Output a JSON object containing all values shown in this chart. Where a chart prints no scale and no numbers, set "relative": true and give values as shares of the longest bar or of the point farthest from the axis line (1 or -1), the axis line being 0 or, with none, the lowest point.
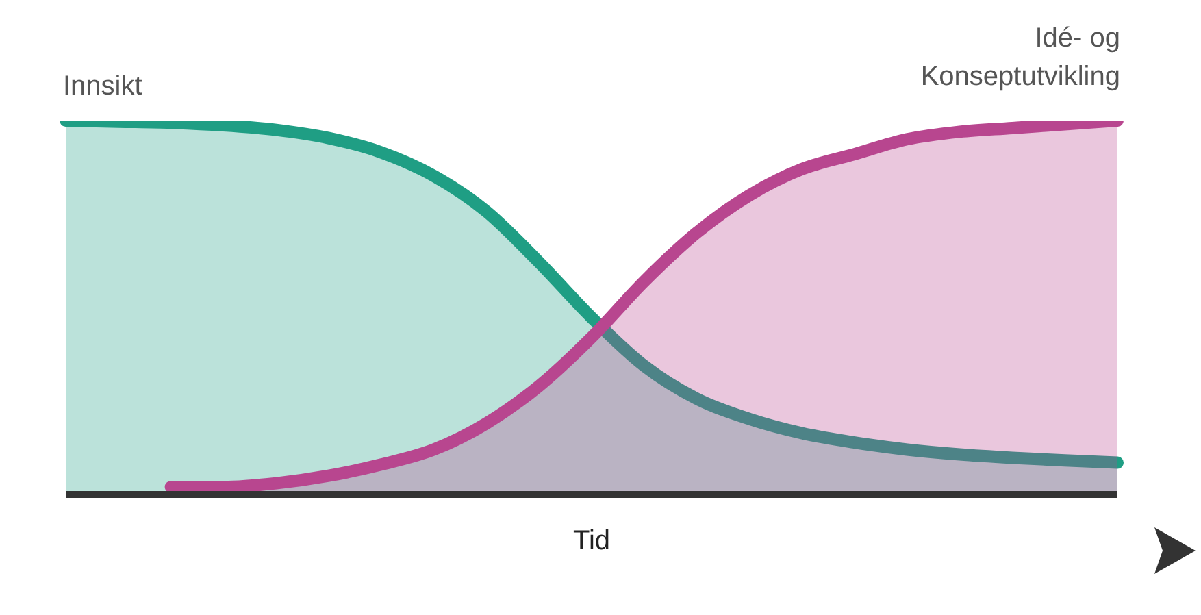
{
  "chart_data": {
    "type": "area",
    "relative": true,
    "xlabel": "Tid",
    "categories": [
      null,
      null,
      null,
      null,
      null,
      null,
      null,
      null,
      null,
      null,
      null,
      null,
      null,
      null,
      null,
      null,
      null,
      null,
      null,
      null,
      null
    ],
    "series": [
      {
        "name": "Innsikt",
        "color": "#1f9e84",
        "values": [
          1,
          0.997,
          0.994,
          0.987,
          0.975,
          0.953,
          0.915,
          0.852,
          0.757,
          0.621,
          0.473,
          0.344,
          0.256,
          0.202,
          0.164,
          0.139,
          0.12,
          0.107,
          0.098,
          0.091,
          0.085
        ]
      },
      {
        "name": "Idé- og Konseptutvikling",
        "color": "#b8468f",
        "values": [
          null,
          null,
          0.02,
          0.02,
          0.03,
          0.05,
          0.08,
          0.12,
          0.19,
          0.29,
          0.42,
          0.57,
          0.7,
          0.8,
          0.87,
          0.91,
          0.95,
          0.97,
          0.98,
          0.99,
          1
        ]
      }
    ]
  }
}
